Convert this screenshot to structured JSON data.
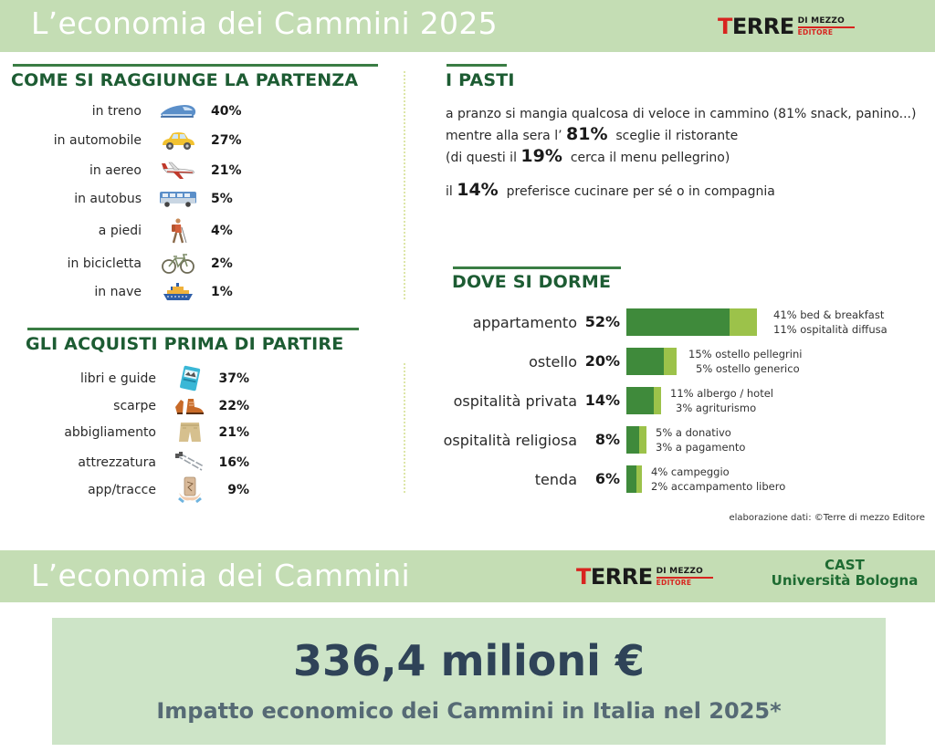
{
  "header": {
    "title": "L’economia dei Cammini 2025",
    "logo": {
      "t": "T",
      "rest": "ERRE",
      "di_mezzo": "DI MEZZO",
      "editore": "EDITORE"
    }
  },
  "colors": {
    "banner_bg": "#c4ddb4",
    "section_title": "#1d5c33",
    "bar_primary": "#3f8a3b",
    "bar_secondary": "#9cc24a",
    "logo_red": "#d8241f",
    "impact_bg": "#cde4c7",
    "impact_text": "#2f4358"
  },
  "transport": {
    "title": "COME SI RAGGIUNGE LA PARTENZA",
    "items": [
      {
        "label": "in treno",
        "icon": "train-icon",
        "value": "40%"
      },
      {
        "label": "in automobile",
        "icon": "car-icon",
        "value": "27%"
      },
      {
        "label": "in aereo",
        "icon": "airplane-icon",
        "value": "21%"
      },
      {
        "label": "in autobus",
        "icon": "bus-icon",
        "value": "5%"
      },
      {
        "label": "a piedi",
        "icon": "hiker-icon",
        "value": "4%"
      },
      {
        "label": "in bicicletta",
        "icon": "bicycle-icon",
        "value": "2%"
      },
      {
        "label": "in nave",
        "icon": "ship-icon",
        "value": "1%"
      }
    ]
  },
  "purchases": {
    "title": "GLI ACQUISTI PRIMA DI PARTIRE",
    "items": [
      {
        "label": "libri e guide",
        "icon": "guidebook-icon",
        "value": "37%"
      },
      {
        "label": "scarpe",
        "icon": "hiking-boots-icon",
        "value": "22%"
      },
      {
        "label": "abbigliamento",
        "icon": "shorts-icon",
        "value": "21%"
      },
      {
        "label": "attrezzatura",
        "icon": "trekking-poles-icon",
        "value": "16%"
      },
      {
        "label": "app/tracce",
        "icon": "phone-app-icon",
        "value": "9%"
      }
    ]
  },
  "meals": {
    "title": "I PASTI",
    "line1": "a pranzo si mangia qualcosa di veloce in cammino (81% snack, panino...)",
    "line2_pre": "mentre alla sera l’",
    "line2_big": "81%",
    "line2_post": "sceglie il ristorante",
    "line3_pre": "(di questi il",
    "line3_big": "19%",
    "line3_post": "cerca il menu pellegrino)",
    "line4_pre": "il",
    "line4_big": "14%",
    "line4_post": "preferisce cucinare per sé o in compagnia"
  },
  "sleep": {
    "title": "DOVE SI DORME",
    "items": [
      {
        "label": "appartamento",
        "value": "52%",
        "sub1": "41% bed & breakfast",
        "sub2": "11% ospitalità diffusa"
      },
      {
        "label": "ostello",
        "value": "20%",
        "sub1": "15% ostello pellegrini",
        "sub2": "5% ostello generico"
      },
      {
        "label": "ospitalità privata",
        "value": "14%",
        "sub1": "11% albergo / hotel",
        "sub2": "3% agriturismo"
      },
      {
        "label": "ospitalità religiosa",
        "value": "8%",
        "sub1": "5% a donativo",
        "sub2": "3% a pagamento"
      },
      {
        "label": "tenda",
        "value": "6%",
        "sub1": "4% campeggio",
        "sub2": "2% accampamento libero"
      }
    ],
    "credit": "elaborazione dati: ©Terre di mezzo Editore"
  },
  "chart_data": {
    "type": "bar",
    "title": "DOVE SI DORME",
    "orientation": "horizontal",
    "stacked": true,
    "categories": [
      "appartamento",
      "ostello",
      "ospitalità privata",
      "ospitalità religiosa",
      "tenda"
    ],
    "totals": [
      52,
      20,
      14,
      8,
      6
    ],
    "series": [
      {
        "name": "primary",
        "values": [
          41,
          15,
          11,
          5,
          4
        ],
        "labels": [
          "bed & breakfast",
          "ostello pellegrini",
          "albergo / hotel",
          "a donativo",
          "campeggio"
        ]
      },
      {
        "name": "secondary",
        "values": [
          11,
          5,
          3,
          3,
          2
        ],
        "labels": [
          "ospitalità diffusa",
          "ostello generico",
          "agriturismo",
          "a pagamento",
          "accampamento libero"
        ]
      }
    ]
  },
  "footer_banner": {
    "title": "L’economia dei Cammini",
    "cast_line1": "CAST",
    "cast_line2": "Università Bologna"
  },
  "impact": {
    "value": "336,4 milioni €",
    "caption": "Impatto economico dei Cammini in Italia nel 2025*"
  }
}
